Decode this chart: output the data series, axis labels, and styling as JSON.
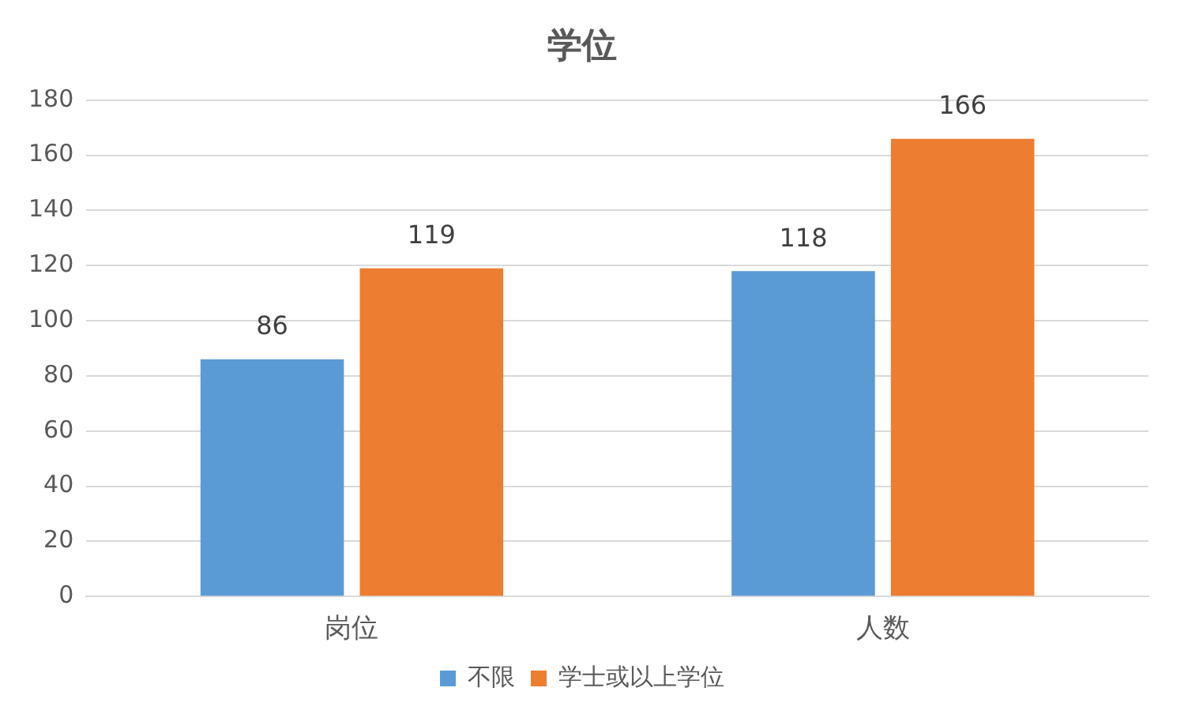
{
  "chart_data": {
    "type": "bar",
    "title": "学位",
    "categories": [
      "岗位",
      "人数"
    ],
    "series": [
      {
        "name": "不限",
        "color": "#5b9bd5",
        "values": [
          86,
          118
        ]
      },
      {
        "name": "学士或以上学位",
        "color": "#ed7d31",
        "values": [
          119,
          166
        ]
      }
    ],
    "ylim": [
      0,
      180
    ],
    "yticks": [
      0,
      20,
      40,
      60,
      80,
      100,
      120,
      140,
      160,
      180
    ],
    "grid": "y",
    "legend": "bottom",
    "data_labels": true
  }
}
